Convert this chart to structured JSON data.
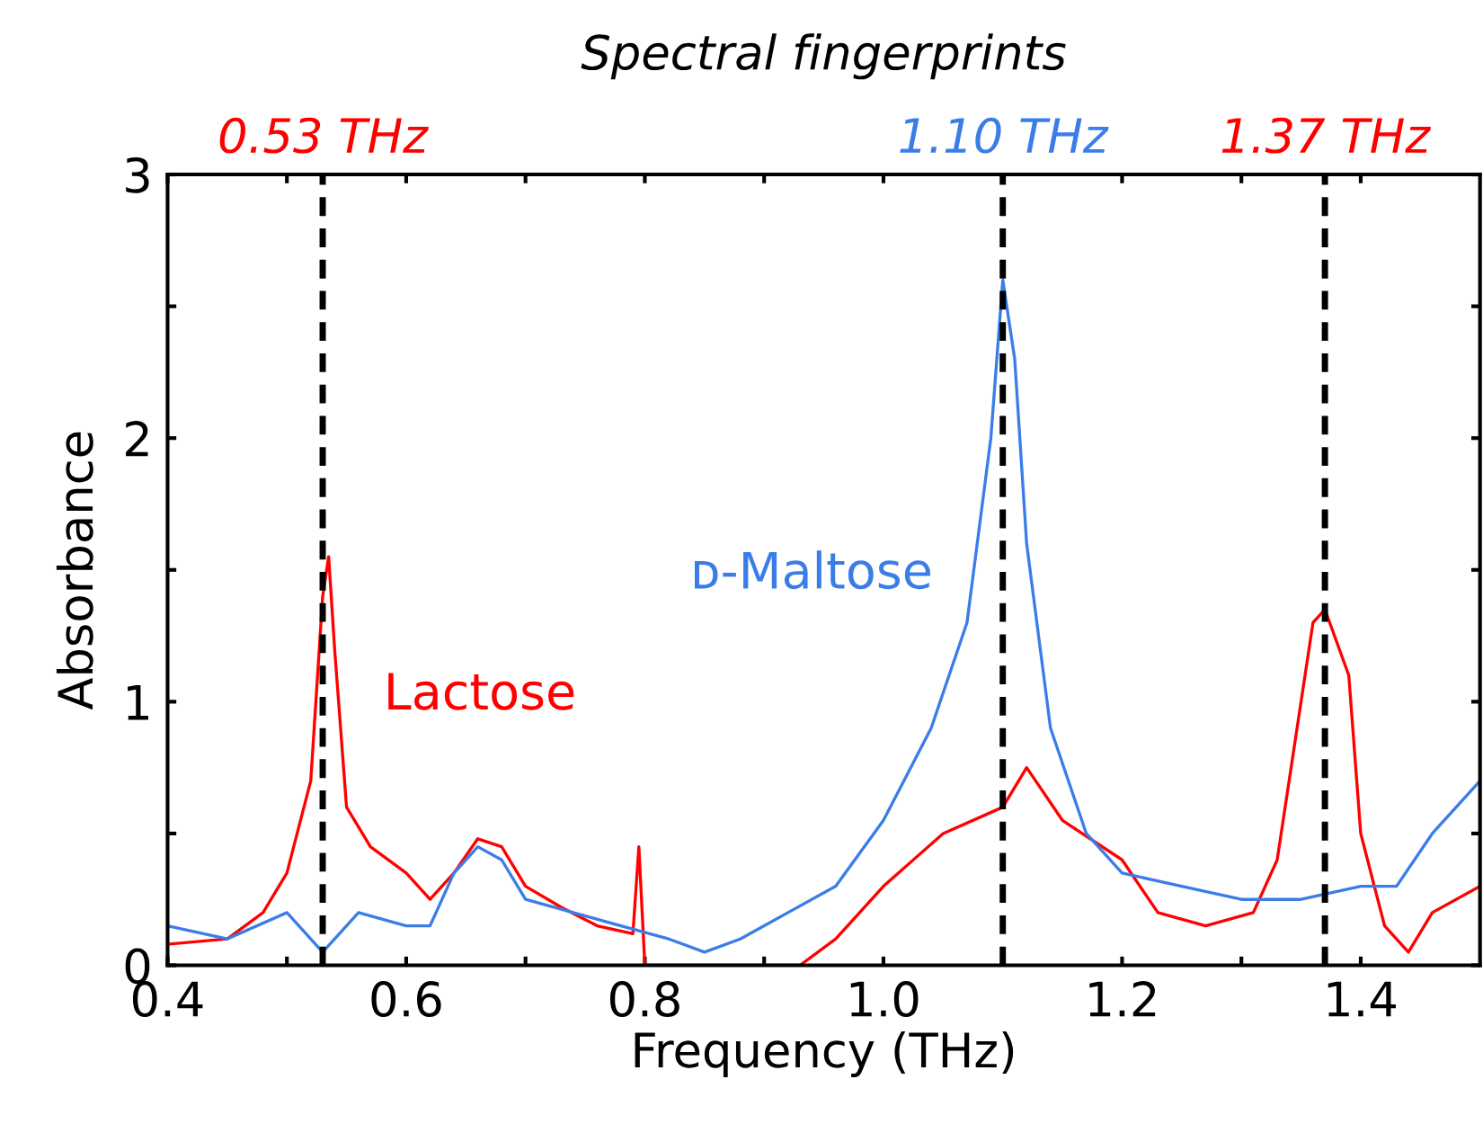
{
  "chart_data": {
    "type": "line",
    "title": "Spectral fingerprints",
    "xlabel": "Frequency (THz)",
    "ylabel": "Absorbance",
    "series": [
      {
        "name": "Lactose",
        "color": "#ff0000",
        "x": [
          0.4,
          0.45,
          0.48,
          0.5,
          0.52,
          0.53,
          0.535,
          0.54,
          0.55,
          0.57,
          0.6,
          0.62,
          0.64,
          0.66,
          0.68,
          0.7,
          0.73,
          0.76,
          0.79,
          0.795,
          0.8,
          0.82,
          0.93,
          0.96,
          1.0,
          1.05,
          1.1,
          1.12,
          1.15,
          1.2,
          1.23,
          1.27,
          1.31,
          1.33,
          1.35,
          1.36,
          1.37,
          1.39,
          1.4,
          1.42,
          1.44,
          1.46,
          1.5
        ],
        "values": [
          0.08,
          0.1,
          0.2,
          0.35,
          0.7,
          1.4,
          1.55,
          1.2,
          0.6,
          0.45,
          0.35,
          0.25,
          0.35,
          0.48,
          0.45,
          0.3,
          0.22,
          0.15,
          0.12,
          0.45,
          0.0,
          0.0,
          0.0,
          0.1,
          0.3,
          0.5,
          0.6,
          0.75,
          0.55,
          0.4,
          0.2,
          0.15,
          0.2,
          0.4,
          1.0,
          1.3,
          1.35,
          1.1,
          0.5,
          0.15,
          0.05,
          0.2,
          0.3
        ]
      },
      {
        "name": "ᴅ-Maltose",
        "color": "#3b7de8",
        "x": [
          0.4,
          0.45,
          0.5,
          0.53,
          0.56,
          0.6,
          0.62,
          0.64,
          0.66,
          0.68,
          0.7,
          0.74,
          0.78,
          0.82,
          0.85,
          0.88,
          0.92,
          0.96,
          1.0,
          1.04,
          1.07,
          1.09,
          1.1,
          1.11,
          1.12,
          1.14,
          1.17,
          1.2,
          1.25,
          1.3,
          1.35,
          1.4,
          1.43,
          1.46,
          1.48,
          1.5
        ],
        "values": [
          0.15,
          0.1,
          0.2,
          0.05,
          0.2,
          0.15,
          0.15,
          0.35,
          0.45,
          0.4,
          0.25,
          0.2,
          0.15,
          0.1,
          0.05,
          0.1,
          0.2,
          0.3,
          0.55,
          0.9,
          1.3,
          2.0,
          2.6,
          2.3,
          1.6,
          0.9,
          0.5,
          0.35,
          0.3,
          0.25,
          0.25,
          0.3,
          0.3,
          0.5,
          0.6,
          0.7
        ]
      }
    ],
    "ref_lines": [
      {
        "axis": "x",
        "value": 0.53,
        "label": "0.53 THz",
        "color": "#000000",
        "line_style": "dashed"
      },
      {
        "axis": "x",
        "value": 1.1,
        "label": "1.10 THz",
        "color": "#000000",
        "line_style": "dashed"
      },
      {
        "axis": "x",
        "value": 1.37,
        "label": "1.37 THz",
        "color": "#000000",
        "line_style": "dashed"
      }
    ],
    "xlim": [
      0.4,
      1.5
    ],
    "ylim": [
      0,
      3
    ],
    "xticks": [
      0.4,
      {
        "value": 0.5,
        "label": null
      },
      0.6,
      {
        "value": 0.7,
        "label": null
      },
      0.8,
      {
        "value": 0.9,
        "label": null
      },
      {
        "value": 1.0,
        "label": "1.0"
      },
      {
        "value": 1.1,
        "label": null
      },
      1.2,
      {
        "value": 1.3,
        "label": null
      },
      1.4
    ],
    "yticks": [
      0,
      {
        "value": 0.5,
        "label": null
      },
      1,
      {
        "value": 1.5,
        "label": null
      },
      2,
      {
        "value": 2.5,
        "label": null
      },
      3
    ],
    "grid": false,
    "marker": "none",
    "line_style": "solid"
  }
}
